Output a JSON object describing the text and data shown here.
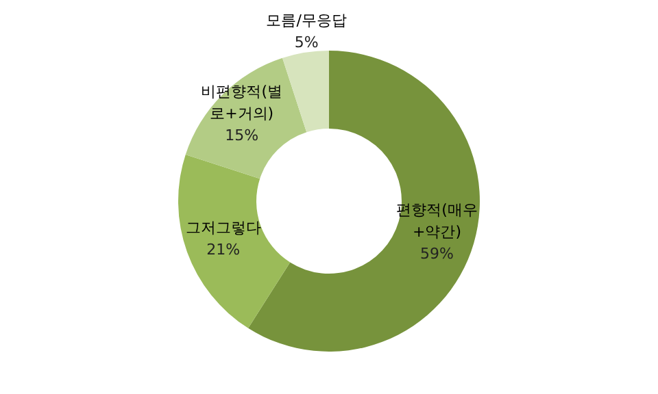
{
  "chart_data": {
    "type": "donut",
    "categories": [
      "편향적(매우+약간)",
      "그저그렇다",
      "비편향적(별로+거의)",
      "모름/무응답"
    ],
    "values": [
      59,
      21,
      15,
      5
    ],
    "value_labels": [
      "59%",
      "21%",
      "15%",
      "5%"
    ],
    "colors": [
      "#77933c",
      "#9bbb59",
      "#b3cc85",
      "#d7e4bd"
    ],
    "legend": false
  }
}
